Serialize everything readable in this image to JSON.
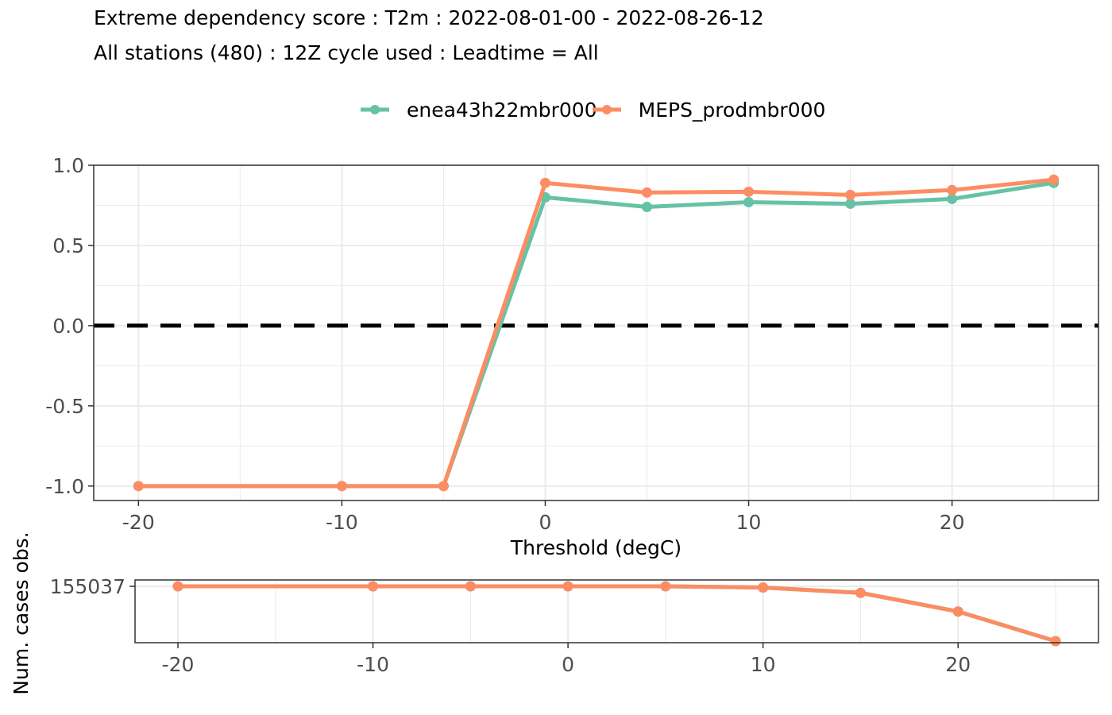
{
  "title": "Extreme dependency score : T2m : 2022-08-01-00 - 2022-08-26-12",
  "subtitle": "All stations (480) : 12Z cycle used : Leadtime = All",
  "legend": {
    "position": "top"
  },
  "colors": {
    "enea43h22mbr000": "#66c2a5",
    "MEPS_prodmbr000": "#fc8d62",
    "reference_line": "#000000",
    "grid": "#ebebeb"
  },
  "chart_data": [
    {
      "type": "line",
      "title": "Extreme dependency score : T2m : 2022-08-01-00 - 2022-08-26-12",
      "subtitle": "All stations (480) : 12Z cycle used : Leadtime = All",
      "xlabel": "Threshold (degC)",
      "ylabel": "",
      "x": [
        -20,
        -10,
        -5,
        0,
        5,
        10,
        15,
        20,
        25
      ],
      "xlim": [
        -22.2,
        27.2
      ],
      "ylim": [
        -1.09,
        1.0
      ],
      "xticks": [
        -20,
        -10,
        0,
        10,
        20
      ],
      "yticks": [
        1.0,
        0.5,
        0.0,
        -0.5,
        -1.0
      ],
      "ytick_labels": [
        "1.0",
        "0.5",
        "0.0",
        "-0.5",
        "-1.0"
      ],
      "reference_line_y": 0,
      "grid": true,
      "series": [
        {
          "name": "enea43h22mbr000",
          "values": [
            -1.0,
            -1.0,
            -1.0,
            0.8,
            0.74,
            0.77,
            0.76,
            0.79,
            0.89
          ]
        },
        {
          "name": "MEPS_prodmbr000",
          "values": [
            -1.0,
            -1.0,
            -1.0,
            0.89,
            0.83,
            0.835,
            0.815,
            0.845,
            0.91
          ]
        }
      ]
    },
    {
      "type": "line",
      "title": "",
      "xlabel": "",
      "ylabel": "Num. cases obs.",
      "x": [
        -20,
        -10,
        -5,
        0,
        5,
        10,
        15,
        20,
        25
      ],
      "xlim": [
        -22.2,
        27.2
      ],
      "ylim": [
        116000,
        155037
      ],
      "xticks": [
        -20,
        -10,
        0,
        10,
        20
      ],
      "yticks": [
        155037
      ],
      "ytick_labels": [
        "155037"
      ],
      "grid": true,
      "series": [
        {
          "name": "",
          "values": [
            155037,
            155037,
            155037,
            155037,
            155037,
            154200,
            150600,
            138000,
            118000
          ]
        }
      ]
    }
  ]
}
